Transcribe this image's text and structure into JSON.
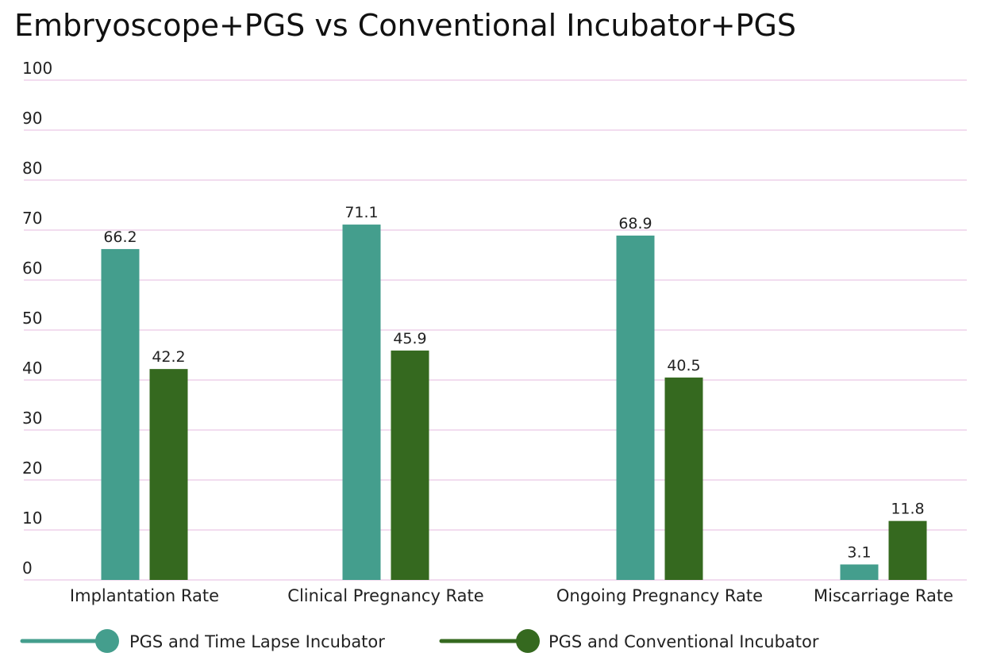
{
  "chart_data": {
    "type": "bar",
    "title": "Embryoscope+PGS vs Conventional Incubator+PGS",
    "xlabel": "",
    "ylabel": "",
    "ylim": [
      0,
      100
    ],
    "yticks": [
      0,
      10,
      20,
      30,
      40,
      50,
      60,
      70,
      80,
      90,
      100
    ],
    "grid": true,
    "legend_position": "bottom-left",
    "categories": [
      "Implantation Rate",
      "Clinical Pregnancy Rate",
      "Ongoing Pregnancy Rate",
      "Miscarriage Rate"
    ],
    "series": [
      {
        "name": "PGS and Time Lapse Incubator",
        "color": "#449e8d",
        "values": [
          66.2,
          71.1,
          68.9,
          3.1
        ]
      },
      {
        "name": "PGS and Conventional Incubator",
        "color": "#35691f",
        "values": [
          42.2,
          45.9,
          40.5,
          11.8
        ]
      }
    ]
  }
}
